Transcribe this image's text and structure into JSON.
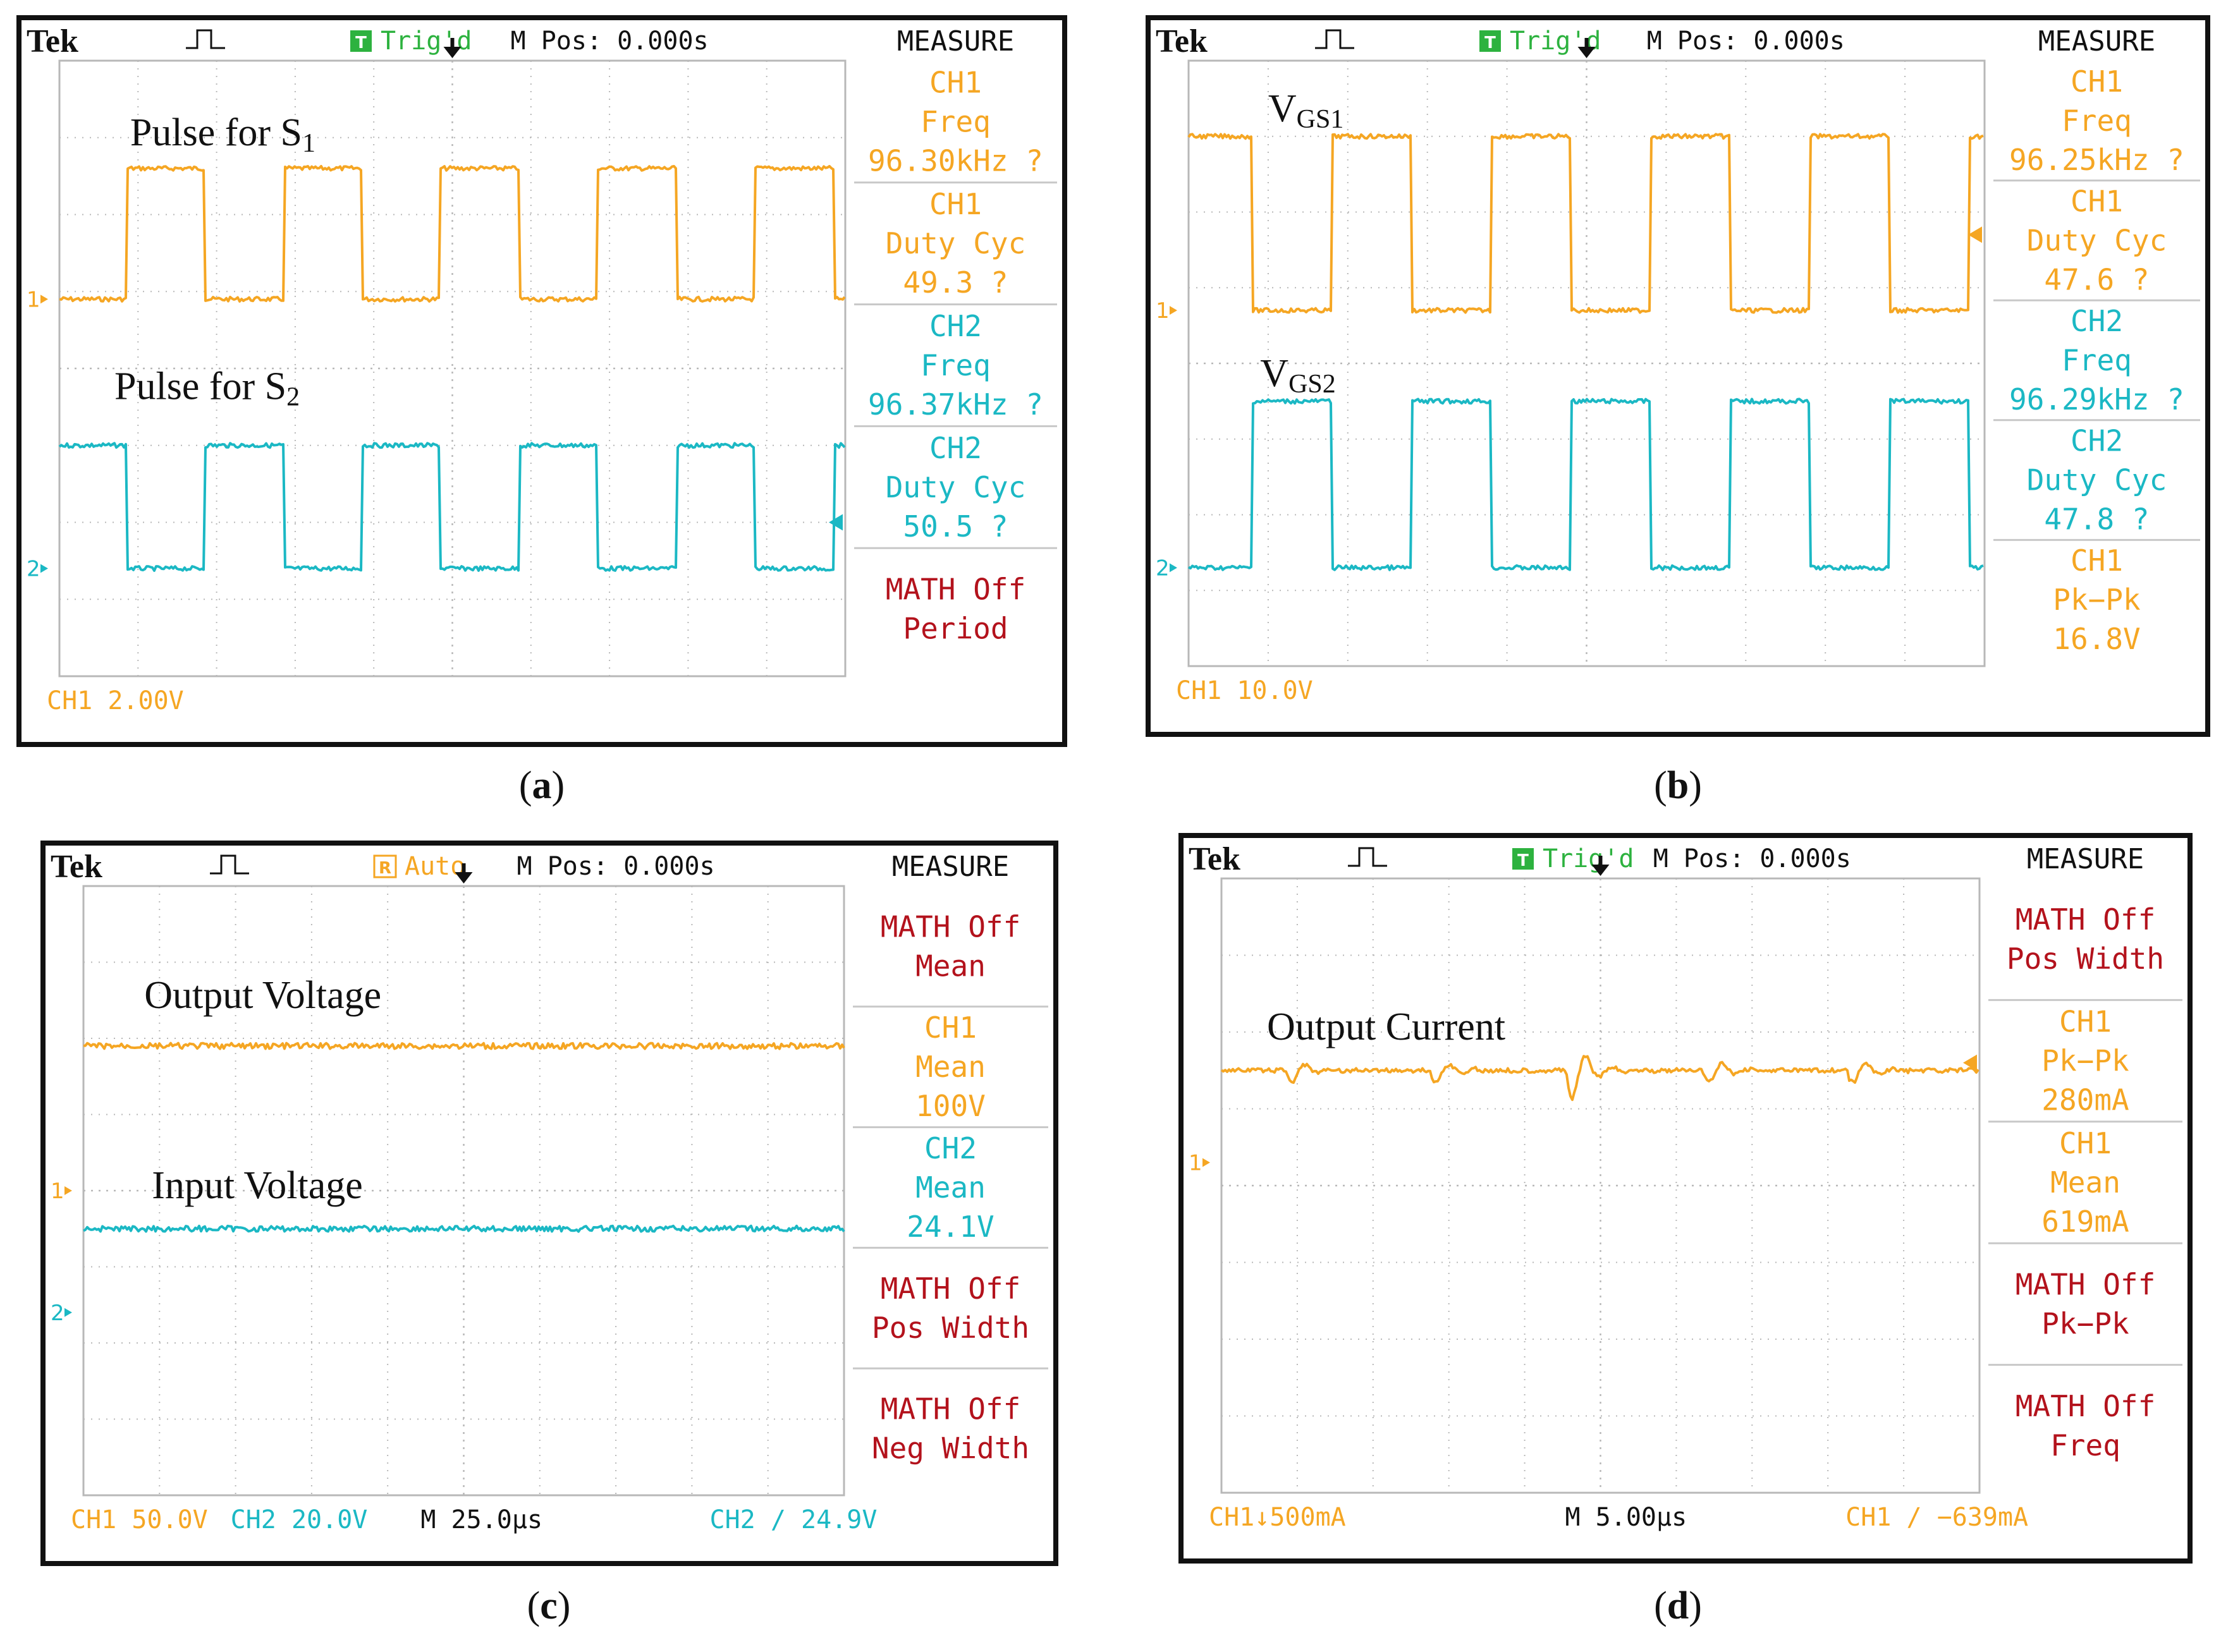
{
  "colors": {
    "ch1": "#f5a623",
    "ch2": "#1bb8c4",
    "math": "#b3121c",
    "grid": "#b8b8b8",
    "bg": "#ffffff",
    "frame": "#111111",
    "trig": "#2db23f",
    "auto": "#f5a623"
  },
  "chart_data": [
    {
      "type": "line",
      "panel": "a",
      "caption": "a",
      "header": {
        "brand": "Tek",
        "status": "Trig'd",
        "status_badge": "T",
        "mpos": "M Pos: 0.000s",
        "menu": "MEASURE"
      },
      "measurements": [
        {
          "lines": [
            "CH1",
            "Freq",
            "96.30kHz ?"
          ],
          "color": "ch1"
        },
        {
          "lines": [
            "CH1",
            "Duty Cyc",
            "49.3 ?"
          ],
          "color": "ch1"
        },
        {
          "lines": [
            "CH2",
            "Freq",
            "96.37kHz ?"
          ],
          "color": "ch2"
        },
        {
          "lines": [
            "CH2",
            "Duty Cyc",
            "50.5 ?"
          ],
          "color": "ch2"
        },
        {
          "lines": [
            "MATH Off",
            "Period"
          ],
          "color": "math"
        }
      ],
      "footer": [
        {
          "text": "CH1   2.00V",
          "color": "ch1",
          "div": 0
        }
      ],
      "channel_markers": [
        {
          "label": "1",
          "div": 3.1,
          "color": "ch1"
        },
        {
          "label": "2",
          "div": 6.6,
          "color": "ch2"
        }
      ],
      "level_arrow": {
        "div": 6.0,
        "color": "ch2"
      },
      "traces": [
        {
          "name": "Pulse for S",
          "sub": "1",
          "color": "ch1",
          "kind": "square",
          "high_div": 1.4,
          "low_div": 3.1,
          "period_div": 2.0,
          "duty": 0.5,
          "phase_div": 0.85,
          "start_high": true,
          "label_div": [
            0.9,
            1.1
          ]
        },
        {
          "name": "Pulse for S",
          "sub": "2",
          "color": "ch2",
          "kind": "square",
          "high_div": 5.0,
          "low_div": 6.6,
          "period_div": 2.0,
          "duty": 0.5,
          "phase_div": 0.85,
          "start_high": false,
          "label_div": [
            0.7,
            4.4
          ]
        }
      ]
    },
    {
      "type": "line",
      "panel": "b",
      "caption": "b",
      "header": {
        "brand": "Tek",
        "status": "Trig'd",
        "status_badge": "T",
        "mpos": "M Pos: 0.000s",
        "menu": "MEASURE"
      },
      "measurements": [
        {
          "lines": [
            "CH1",
            "Freq",
            "96.25kHz ?"
          ],
          "color": "ch1"
        },
        {
          "lines": [
            "CH1",
            "Duty Cyc",
            "47.6 ?"
          ],
          "color": "ch1"
        },
        {
          "lines": [
            "CH2",
            "Freq",
            "96.29kHz ?"
          ],
          "color": "ch2"
        },
        {
          "lines": [
            "CH2",
            "Duty Cyc",
            "47.8 ?"
          ],
          "color": "ch2"
        },
        {
          "lines": [
            "CH1",
            "Pk−Pk",
            "16.8V"
          ],
          "color": "ch1"
        }
      ],
      "footer": [
        {
          "text": "CH1   10.0V",
          "color": "ch1",
          "div": 0
        }
      ],
      "channel_markers": [
        {
          "label": "1",
          "div": 3.3,
          "color": "ch1"
        },
        {
          "label": "2",
          "div": 6.7,
          "color": "ch2"
        }
      ],
      "level_arrow": {
        "div": 2.3,
        "color": "ch1"
      },
      "traces": [
        {
          "name": "V",
          "sub": "GS1",
          "color": "ch1",
          "kind": "square",
          "high_div": 1.0,
          "low_div": 3.3,
          "period_div": 2.0,
          "duty": 0.5,
          "phase_div": 0.8,
          "start_high": false,
          "label_div": [
            1.0,
            0.8
          ]
        },
        {
          "name": "V",
          "sub": "GS2",
          "color": "ch2",
          "kind": "square",
          "high_div": 4.5,
          "low_div": 6.7,
          "period_div": 2.0,
          "duty": 0.5,
          "phase_div": 0.8,
          "start_high": true,
          "label_div": [
            0.9,
            4.3
          ]
        }
      ]
    },
    {
      "type": "line",
      "panel": "c",
      "caption": "c",
      "header": {
        "brand": "Tek",
        "status": "Auto",
        "status_badge": "R",
        "mpos": "M Pos: 0.000s",
        "menu": "MEASURE"
      },
      "measurements": [
        {
          "lines": [
            "MATH Off",
            "Mean"
          ],
          "color": "math"
        },
        {
          "lines": [
            "CH1",
            "Mean",
            "100V"
          ],
          "color": "ch1"
        },
        {
          "lines": [
            "CH2",
            "Mean",
            "24.1V"
          ],
          "color": "ch2"
        },
        {
          "lines": [
            "MATH Off",
            "Pos Width"
          ],
          "color": "math"
        },
        {
          "lines": [
            "MATH Off",
            "Neg Width"
          ],
          "color": "math"
        }
      ],
      "footer": [
        {
          "text": "CH1   50.0V",
          "color": "ch1",
          "div": 0
        },
        {
          "text": "CH2   20.0V",
          "color": "ch2",
          "div": 2.1
        },
        {
          "text": "M 25.0µs",
          "color": "ink",
          "div": 4.6
        },
        {
          "text": "CH2  ∕  24.9V",
          "color": "ch2",
          "div": 8.4
        }
      ],
      "channel_markers": [
        {
          "label": "1",
          "div": 4.0,
          "color": "ch1"
        },
        {
          "label": "2",
          "div": 5.6,
          "color": "ch2"
        }
      ],
      "level_arrow": null,
      "traces": [
        {
          "name": "Output Voltage",
          "sub": "",
          "color": "ch1",
          "kind": "flat",
          "level_div": 2.1,
          "label_div": [
            0.8,
            1.6
          ]
        },
        {
          "name": "Input Voltage",
          "sub": "",
          "color": "ch2",
          "kind": "flat",
          "level_div": 4.5,
          "label_div": [
            0.9,
            4.1
          ]
        }
      ]
    },
    {
      "type": "line",
      "panel": "d",
      "caption": "d",
      "header": {
        "brand": "Tek",
        "status": "Trig'd",
        "status_badge": "T",
        "mpos": "M Pos: 0.000s",
        "menu": "MEASURE"
      },
      "measurements": [
        {
          "lines": [
            "MATH Off",
            "Pos Width"
          ],
          "color": "math"
        },
        {
          "lines": [
            "CH1",
            "Pk−Pk",
            "280mA"
          ],
          "color": "ch1"
        },
        {
          "lines": [
            "CH1",
            "Mean",
            "619mA"
          ],
          "color": "ch1"
        },
        {
          "lines": [
            "MATH Off",
            "Pk−Pk"
          ],
          "color": "math"
        },
        {
          "lines": [
            "MATH Off",
            "Freq"
          ],
          "color": "math"
        }
      ],
      "footer": [
        {
          "text": "CH1↓500mA",
          "color": "ch1",
          "div": 0
        },
        {
          "text": "M 5.00µs",
          "color": "ink",
          "div": 4.7
        },
        {
          "text": "CH1  ∕  −639mA",
          "color": "ch1",
          "div": 8.4
        }
      ],
      "channel_markers": [
        {
          "label": "1",
          "div": 3.7,
          "color": "ch1"
        }
      ],
      "level_arrow": {
        "div": 2.4,
        "color": "ch1"
      },
      "traces": [
        {
          "name": "Output Current",
          "sub": "",
          "color": "ch1",
          "kind": "ringing",
          "level_div": 2.5,
          "dips_div": [
            0.9,
            2.8,
            4.6,
            6.4,
            8.3
          ],
          "label_div": [
            0.6,
            2.1
          ]
        }
      ]
    }
  ]
}
